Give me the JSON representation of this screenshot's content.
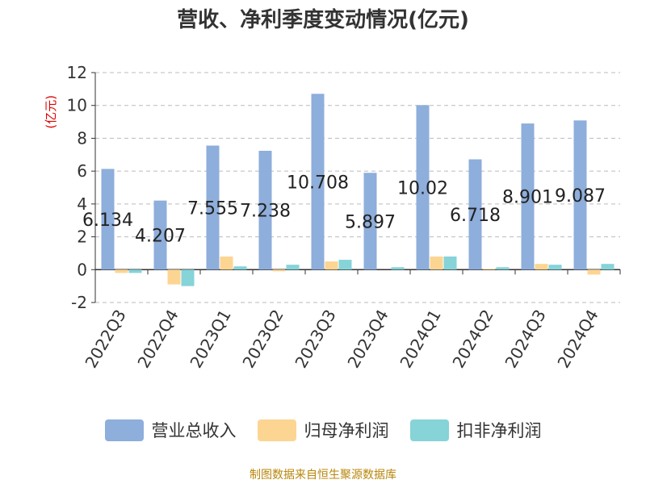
{
  "title": "营收、净利季度变动情况(亿元)",
  "source": "制图数据来自恒生聚源数据库",
  "chart_data": {
    "type": "bar",
    "title": "营收、净利季度变动情况(亿元)",
    "ylabel": "(亿元)",
    "xlabel": "",
    "ylim": [
      -2,
      12
    ],
    "yticks": [
      -2,
      0,
      2,
      4,
      6,
      8,
      10,
      12
    ],
    "grid": true,
    "legend_position": "bottom",
    "categories": [
      "2022Q3",
      "2022Q4",
      "2023Q1",
      "2023Q2",
      "2023Q3",
      "2023Q4",
      "2024Q1",
      "2024Q2",
      "2024Q3",
      "2024Q4"
    ],
    "series": [
      {
        "name": "营业总收入",
        "color": "#8eaedb",
        "values": [
          6.134,
          4.207,
          7.555,
          7.238,
          10.708,
          5.897,
          10.02,
          6.718,
          8.901,
          9.087
        ],
        "labels": [
          "6.134",
          "4.207",
          "7.555",
          "7.238",
          "10.708",
          "5.897",
          "10.02",
          "6.718",
          "8.901",
          "9.087"
        ]
      },
      {
        "name": "归母净利润",
        "color": "#fcd592",
        "values": [
          -0.2,
          -0.9,
          0.8,
          -0.1,
          0.5,
          0.0,
          0.8,
          0.05,
          0.35,
          -0.3
        ]
      },
      {
        "name": "扣非净利润",
        "color": "#86d3d8",
        "values": [
          -0.2,
          -1.0,
          0.2,
          0.3,
          0.6,
          0.15,
          0.8,
          0.15,
          0.3,
          0.35
        ]
      }
    ]
  }
}
